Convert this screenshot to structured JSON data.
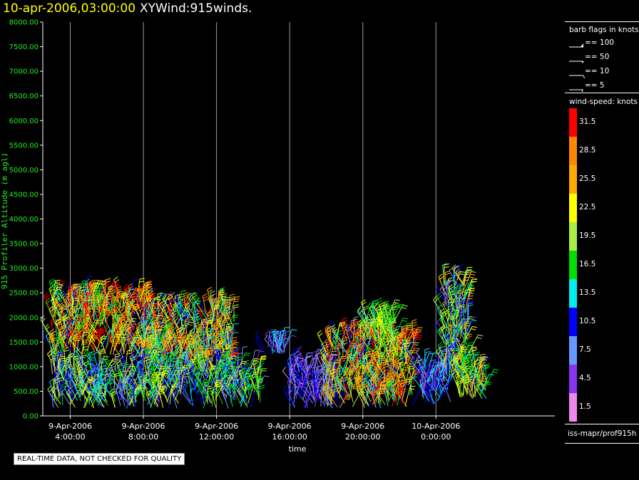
{
  "header": {
    "time": "10-apr-2006,03:00:00",
    "name": "XYWind:915winds."
  },
  "footer": {
    "notice": "REAL-TIME DATA, NOT CHECKED FOR QUALITY"
  },
  "legend": {
    "barb_title": "barb flags in knots",
    "barbs": [
      {
        "label": "== 100"
      },
      {
        "label": "== 50"
      },
      {
        "label": "== 10"
      },
      {
        "label": "== 5"
      }
    ],
    "speed_title": "wind-speed: knots",
    "speed_levels": [
      {
        "label": "31.5",
        "color": "#ff0000"
      },
      {
        "label": "28.5",
        "color": "#ff8800"
      },
      {
        "label": "25.5",
        "color": "#ffaa00"
      },
      {
        "label": "22.5",
        "color": "#ffff00"
      },
      {
        "label": "19.5",
        "color": "#aaee44"
      },
      {
        "label": "16.5",
        "color": "#00dd00"
      },
      {
        "label": "13.5",
        "color": "#00eeee"
      },
      {
        "label": "10.5",
        "color": "#0000ff"
      },
      {
        "label": "7.5",
        "color": "#6699ff"
      },
      {
        "label": "4.5",
        "color": "#8833ee"
      },
      {
        "label": "1.5",
        "color": "#ee88ee"
      }
    ],
    "source": "iss-mapr/prof915h"
  },
  "chart_data": {
    "type": "scatter",
    "ylabel": "915 Profiler Altitude (m agl)",
    "xlabel": "time",
    "ylim": [
      0,
      8000
    ],
    "yticks": [
      "0.00",
      "500.00",
      "1000.00",
      "1500.00",
      "2000.00",
      "2500.00",
      "3000.00",
      "3500.00",
      "4000.00",
      "4500.00",
      "5000.00",
      "5500.00",
      "6000.00",
      "6500.00",
      "7000.00",
      "7500.00",
      "8000.00"
    ],
    "xlim_hours": [
      2.5,
      30.5
    ],
    "xticks": [
      {
        "hour": 4,
        "date": "9-Apr-2006",
        "time": "4:00:00"
      },
      {
        "hour": 8,
        "date": "9-Apr-2006",
        "time": "8:00:00"
      },
      {
        "hour": 12,
        "date": "9-Apr-2006",
        "time": "12:00:00"
      },
      {
        "hour": 16,
        "date": "9-Apr-2006",
        "time": "16:00:00"
      },
      {
        "hour": 20,
        "date": "9-Apr-2006",
        "time": "20:00:00"
      },
      {
        "hour": 24,
        "date": "10-Apr-2006",
        "time": "0:00:00"
      }
    ],
    "grid": "vertical",
    "series_clusters": [
      {
        "hours": [
          2.9,
          8.3
        ],
        "alt": [
          1200,
          2400
        ],
        "speed": [
          10,
          33
        ]
      },
      {
        "hours": [
          7.8,
          13.0
        ],
        "alt": [
          900,
          2200
        ],
        "speed": [
          8,
          32
        ]
      },
      {
        "hours": [
          3.0,
          14.5
        ],
        "alt": [
          150,
          1000
        ],
        "speed": [
          5,
          24
        ]
      },
      {
        "hours": [
          14.6,
          15.8
        ],
        "alt": [
          1250,
          1400
        ],
        "speed": [
          4,
          14
        ]
      },
      {
        "hours": [
          16.0,
          18.5
        ],
        "alt": [
          150,
          1000
        ],
        "speed": [
          2,
          12
        ]
      },
      {
        "hours": [
          18.0,
          22.8
        ],
        "alt": [
          150,
          1600
        ],
        "speed": [
          8,
          33
        ]
      },
      {
        "hours": [
          20.0,
          21.8
        ],
        "alt": [
          1500,
          2000
        ],
        "speed": [
          14,
          23
        ]
      },
      {
        "hours": [
          23.2,
          24.8
        ],
        "alt": [
          200,
          1000
        ],
        "speed": [
          4,
          14
        ]
      },
      {
        "hours": [
          24.4,
          25.8
        ],
        "alt": [
          800,
          2700
        ],
        "speed": [
          4,
          26
        ]
      },
      {
        "hours": [
          25.2,
          26.8
        ],
        "alt": [
          350,
          1000
        ],
        "speed": [
          10,
          26
        ]
      }
    ]
  }
}
